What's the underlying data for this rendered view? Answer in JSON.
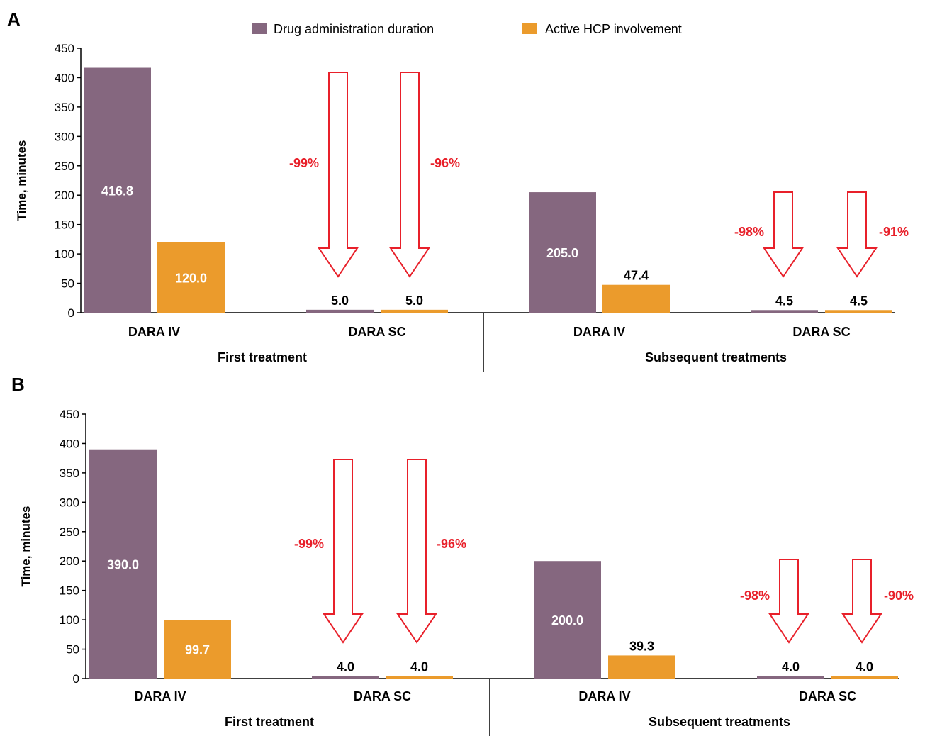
{
  "colors": {
    "drug": "#85677f",
    "hcp": "#eb9b2c",
    "arrow": "#e8202a",
    "axis": "#000000"
  },
  "legend": {
    "items": [
      {
        "label": "Drug administration duration",
        "color_key": "drug"
      },
      {
        "label": "Active HCP involvement",
        "color_key": "hcp"
      }
    ]
  },
  "chart_data": [
    {
      "type": "bar",
      "panel": "A",
      "ylabel": "Time, minutes",
      "ylim": [
        0,
        450
      ],
      "yticks": [
        0,
        50,
        100,
        150,
        200,
        250,
        300,
        350,
        400,
        450
      ],
      "groups": [
        "First treatment",
        "Subsequent treatments"
      ],
      "categories": [
        "DARA IV",
        "DARA SC",
        "DARA IV",
        "DARA SC"
      ],
      "series": [
        {
          "name": "Drug administration duration",
          "values": [
            416.8,
            5.0,
            205.0,
            4.5
          ],
          "labels": [
            "416.8",
            "5.0",
            "205.0",
            "4.5"
          ]
        },
        {
          "name": "Active HCP involvement",
          "values": [
            120.0,
            5.0,
            47.4,
            4.5
          ],
          "labels": [
            "120.0",
            "5.0",
            "47.4",
            "4.5"
          ]
        }
      ],
      "reductions": [
        {
          "group": 0,
          "drug": "-99%",
          "hcp": "-96%"
        },
        {
          "group": 1,
          "drug": "-98%",
          "hcp": "-91%"
        }
      ]
    },
    {
      "type": "bar",
      "panel": "B",
      "ylabel": "Time, minutes",
      "ylim": [
        0,
        450
      ],
      "yticks": [
        0,
        50,
        100,
        150,
        200,
        250,
        300,
        350,
        400,
        450
      ],
      "groups": [
        "First treatment",
        "Subsequent treatments"
      ],
      "categories": [
        "DARA IV",
        "DARA SC",
        "DARA IV",
        "DARA SC"
      ],
      "series": [
        {
          "name": "Drug administration duration",
          "values": [
            390.0,
            4.0,
            200.0,
            4.0
          ],
          "labels": [
            "390.0",
            "4.0",
            "200.0",
            "4.0"
          ]
        },
        {
          "name": "Active HCP involvement",
          "values": [
            99.7,
            4.0,
            39.3,
            4.0
          ],
          "labels": [
            "99.7",
            "4.0",
            "39.3",
            "4.0"
          ]
        }
      ],
      "reductions": [
        {
          "group": 0,
          "drug": "-99%",
          "hcp": "-96%"
        },
        {
          "group": 1,
          "drug": "-98%",
          "hcp": "-90%"
        }
      ]
    }
  ]
}
